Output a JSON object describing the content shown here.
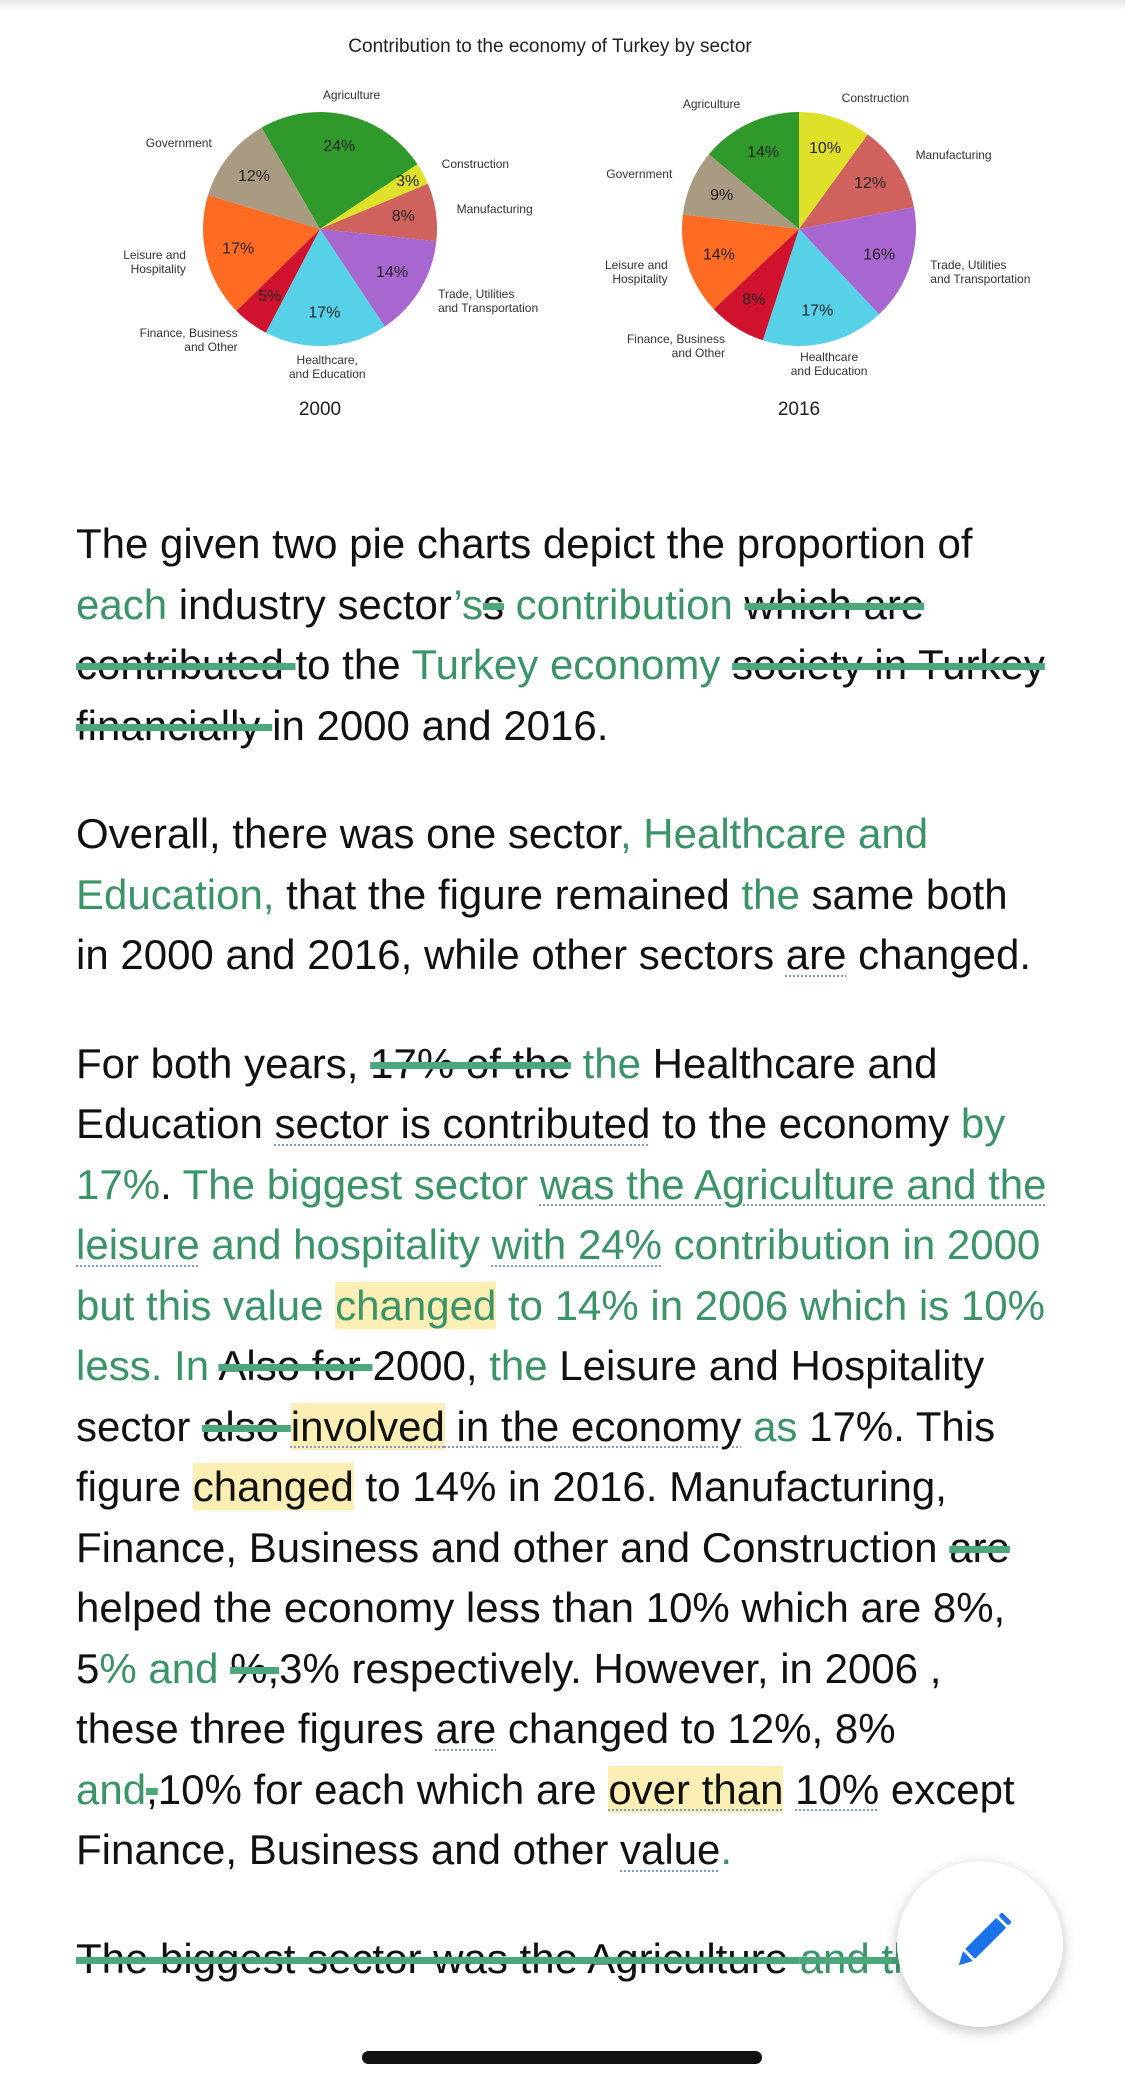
{
  "figure": {
    "title": "Contribution to the economy of Turkey by sector",
    "colors": [
      "#2f9a2b",
      "#dfe02a",
      "#d0625e",
      "#a866d0",
      "#56d1e7",
      "#d0122f",
      "#ff6b22",
      "#a99b82"
    ],
    "pies": [
      {
        "year": "2000",
        "categories": [
          "Agriculture",
          "Construction",
          "Manufacturing",
          "Trade, Utilities\nand Transportation",
          "Healthcare,\nand Education",
          "Finance, Business\nand Other",
          "Leisure and\nHospitality",
          "Government"
        ],
        "values": [
          24,
          3,
          8,
          14,
          17,
          5,
          17,
          12
        ],
        "value_labels": [
          "24%",
          "3%",
          "8%",
          "14%",
          "17%",
          "5%",
          "17%",
          "12%"
        ]
      },
      {
        "year": "2016",
        "categories": [
          "Agriculture",
          "Construction",
          "Manufacturing",
          "Trade, Utilities\nand Transportation",
          "Healthcare\nand Education",
          "Finance, Business\nand Other",
          "Leisure and\nHospitality",
          "Government"
        ],
        "values": [
          14,
          10,
          12,
          16,
          17,
          8,
          14,
          9
        ],
        "value_labels": [
          "14%",
          "10%",
          "12%",
          "16%",
          "17%",
          "8%",
          "14%",
          "9%"
        ]
      }
    ]
  },
  "essay": {
    "paragraphs": [
      {
        "segments": [
          {
            "text": "The given two pie charts depict the proportion of ",
            "style": "plain"
          },
          {
            "text": "each",
            "style": "ins"
          },
          {
            "text": " industry sector",
            "style": "plain"
          },
          {
            "text": "’s",
            "style": "ins"
          },
          {
            "text": "s",
            "style": "del"
          },
          {
            "text": " ",
            "style": "plain"
          },
          {
            "text": "contribution",
            "style": "ins"
          },
          {
            "text": " ",
            "style": "plain"
          },
          {
            "text": "which are contributed ",
            "style": "del"
          },
          {
            "text": "to the ",
            "style": "plain"
          },
          {
            "text": "Turkey economy",
            "style": "ins"
          },
          {
            "text": " ",
            "style": "plain"
          },
          {
            "text": "society in Turkey financially ",
            "style": "del"
          },
          {
            "text": "in 2000 and 2016.",
            "style": "plain"
          }
        ]
      },
      {
        "segments": [
          {
            "text": "Overall, there was one sector",
            "style": "plain"
          },
          {
            "text": ", Healthcare and Education,",
            "style": "ins"
          },
          {
            "text": " that the figure remained ",
            "style": "plain"
          },
          {
            "text": "the",
            "style": "ins"
          },
          {
            "text": " same both in 2000 and 2016, while other sectors ",
            "style": "plain"
          },
          {
            "text": "are",
            "style": "dotted"
          },
          {
            "text": " changed.",
            "style": "plain"
          }
        ]
      },
      {
        "segments": [
          {
            "text": "For both years, ",
            "style": "plain"
          },
          {
            "text": "17% of the",
            "style": "del"
          },
          {
            "text": " ",
            "style": "plain"
          },
          {
            "text": "the",
            "style": "ins"
          },
          {
            "text": " Healthcare and Education ",
            "style": "plain"
          },
          {
            "text": "sector is contributed",
            "style": "dotted"
          },
          {
            "text": " to the economy ",
            "style": "plain"
          },
          {
            "text": "by 17%",
            "style": "ins"
          },
          {
            "text": ". ",
            "style": "plain"
          },
          {
            "text": "The biggest sector ",
            "style": "ins"
          },
          {
            "text": "was the Agriculture and the leisure",
            "style": "ins dotted"
          },
          {
            "text": " and hospitality ",
            "style": "ins"
          },
          {
            "text": "with 24%",
            "style": "ins dotted"
          },
          {
            "text": " contribution in 2000 but this value ",
            "style": "ins"
          },
          {
            "text": "changed",
            "style": "ins mark"
          },
          {
            "text": " to 14% in 2006 which is 10% less. In ",
            "style": "ins"
          },
          {
            "text": "Also for ",
            "style": "del"
          },
          {
            "text": "2000, ",
            "style": "plain"
          },
          {
            "text": "the",
            "style": "ins"
          },
          {
            "text": " Leisure and Hospitality sector ",
            "style": "plain"
          },
          {
            "text": "also ",
            "style": "del"
          },
          {
            "text": "involved",
            "style": "mark dotted"
          },
          {
            "text": " in the economy",
            "style": "dotted"
          },
          {
            "text": " ",
            "style": "plain"
          },
          {
            "text": "as",
            "style": "ins"
          },
          {
            "text": " 17%. This figure ",
            "style": "plain"
          },
          {
            "text": "changed",
            "style": "mark"
          },
          {
            "text": " to 14% in 2016. Manufacturing, Finance, Business and other and Construction ",
            "style": "plain"
          },
          {
            "text": "are ",
            "style": "del"
          },
          {
            "text": "helped the economy less than 10% which are 8%, 5",
            "style": "plain"
          },
          {
            "text": "% and",
            "style": "ins"
          },
          {
            "text": " ",
            "style": "plain"
          },
          {
            "text": "%,",
            "style": "del"
          },
          {
            "text": "3% respectively. However, in 2006 , these three figures ",
            "style": "plain"
          },
          {
            "text": "are",
            "style": "dotted"
          },
          {
            "text": " changed to 12%, 8% ",
            "style": "plain"
          },
          {
            "text": "and",
            "style": "ins"
          },
          {
            "text": ",",
            "style": "del"
          },
          {
            "text": "10% for each which are ",
            "style": "plain"
          },
          {
            "text": "over than",
            "style": "mark dotted"
          },
          {
            "text": " ",
            "style": "plain"
          },
          {
            "text": "10%",
            "style": "dotted"
          },
          {
            "text": " except Finance, Business and other ",
            "style": "plain"
          },
          {
            "text": "value",
            "style": "dotted"
          },
          {
            "text": ".",
            "style": "ins"
          }
        ]
      },
      {
        "segments": [
          {
            "text": "The biggest sector was the Agriculture ",
            "style": "del"
          },
          {
            "text": "and the",
            "style": "del ins"
          }
        ]
      }
    ]
  }
}
